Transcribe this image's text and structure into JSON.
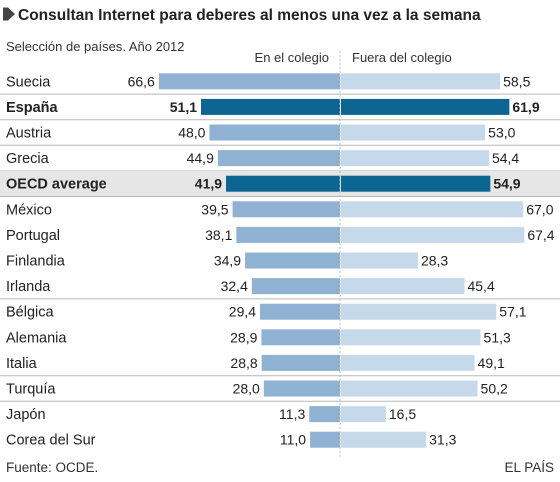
{
  "title": "Consultan Internet para deberes al menos una vez a la semana",
  "subtitle": "Selección de países. Año 2012",
  "source": "Fuente: OCDE.",
  "brand": "EL PAÍS",
  "colors": {
    "bar_left": "#8fb2d3",
    "bar_right": "#c6d9ea",
    "bar_highlight": "#0d6592",
    "highlight_row_bg": "#e6e6e6",
    "separator": "#b8b8b8",
    "bullet": "#444444"
  },
  "chart_data": {
    "type": "bar",
    "orientation": "horizontal-diverging",
    "series": [
      {
        "name": "En el colegio",
        "values": [
          66.6,
          51.1,
          48.0,
          44.9,
          41.9,
          39.5,
          38.1,
          34.9,
          32.4,
          29.4,
          28.9,
          28.8,
          28.0,
          11.3,
          11.0
        ]
      },
      {
        "name": "Fuera del colegio",
        "values": [
          58.5,
          61.9,
          53.0,
          54.4,
          54.9,
          67.0,
          67.4,
          28.3,
          45.4,
          57.1,
          51.3,
          49.1,
          50.2,
          16.5,
          31.3
        ]
      }
    ],
    "categories": [
      "Suecia",
      "España",
      "Austria",
      "Grecia",
      "OECD average",
      "México",
      "Portugal",
      "Finlandia",
      "Irlanda",
      "Bélgica",
      "Alemania",
      "Italia",
      "Turquía",
      "Japón",
      "Corea del Sur"
    ],
    "value_labels_left": [
      "66,6",
      "51,1",
      "48,0",
      "44,9",
      "41,9",
      "39,5",
      "38,1",
      "34,9",
      "32,4",
      "29,4",
      "28,9",
      "28,8",
      "28,0",
      "11,3",
      "11,0"
    ],
    "value_labels_right": [
      "58,5",
      "61,9",
      "53,0",
      "54,4",
      "54,9",
      "67,0",
      "67,4",
      "28,3",
      "45,4",
      "57,1",
      "51,3",
      "49,1",
      "50,2",
      "16,5",
      "31,3"
    ],
    "highlighted": [
      "España",
      "OECD average"
    ],
    "shaded_rows": [
      "OECD average"
    ],
    "group_separators_after": [
      "Suecia",
      "España",
      "Austria",
      "Grecia",
      "OECD average",
      "Irlanda",
      "Italia",
      "Turquía"
    ],
    "unit": "%",
    "xlim": [
      0,
      70
    ]
  }
}
